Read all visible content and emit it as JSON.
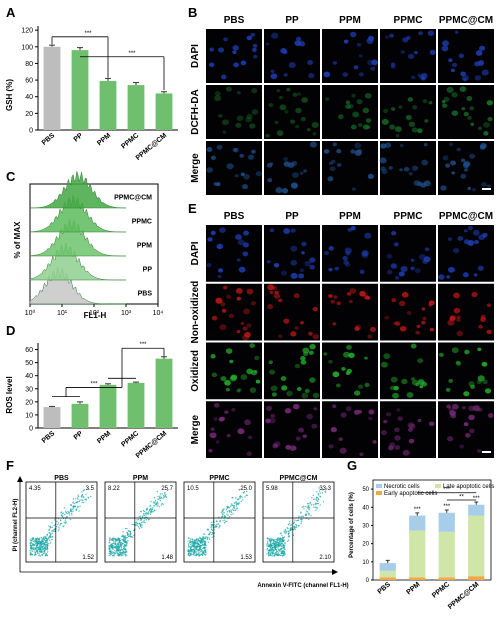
{
  "panels": {
    "A": "A",
    "B": "B",
    "C": "C",
    "D": "D",
    "E": "E",
    "F": "F",
    "G": "G"
  },
  "micro_columns": [
    "PBS",
    "PP",
    "PPM",
    "PPMC",
    "PPMC@CM"
  ],
  "microscopy_B": {
    "rows": [
      "DAPI",
      "DCFH-DA",
      "Merge"
    ],
    "colors": {
      "DAPI": "#1f3fb5",
      "DCFH-DA": "#1a7a2a",
      "Merge": "#1f4f8a"
    }
  },
  "microscopy_E": {
    "rows": [
      "DAPI",
      "Non-oxidized",
      "Oxidized",
      "Merge"
    ],
    "colors": {
      "DAPI": "#1f3fb5",
      "Non-oxidized": "#c01818",
      "Oxidized": "#24b22c",
      "Merge": "#7a2a7a"
    }
  },
  "chart_data": [
    {
      "panel": "A",
      "type": "bar",
      "categories": [
        "PBS",
        "PP",
        "PPM",
        "PPMC",
        "PPMC@CM"
      ],
      "values": [
        100,
        96,
        59,
        54,
        44
      ],
      "errors": [
        2,
        3,
        3,
        3,
        2
      ],
      "ylabel": "GSH (%)",
      "ylim": [
        0,
        125
      ],
      "yticks": [
        0,
        20,
        40,
        60,
        80,
        100,
        120
      ],
      "colors": [
        "#bdbdbd",
        "#6fbf6f",
        "#6fbf6f",
        "#6fbf6f",
        "#6fbf6f"
      ],
      "significance": [
        "***",
        "***"
      ]
    },
    {
      "panel": "C",
      "type": "area",
      "title": "",
      "xlabel": "FL1-H",
      "ylabel": "% of MAX",
      "xticks": [
        "10⁰",
        "10¹",
        "10²",
        "10³",
        "10⁴"
      ],
      "series": [
        {
          "name": "PBS",
          "peak_log": 0.9,
          "color": "#c7c7c7"
        },
        {
          "name": "PP",
          "peak_log": 1.1,
          "color": "#8fd08f"
        },
        {
          "name": "PPM",
          "peak_log": 1.3,
          "color": "#6cc46c"
        },
        {
          "name": "PPMC",
          "peak_log": 1.35,
          "color": "#5cbb5c"
        },
        {
          "name": "PPMC@CM",
          "peak_log": 1.5,
          "color": "#43a743"
        }
      ]
    },
    {
      "panel": "D",
      "type": "bar",
      "categories": [
        "PBS",
        "PP",
        "PPM",
        "PPMC",
        "PPMC@CM"
      ],
      "values": [
        16,
        18.5,
        33,
        34.5,
        53
      ],
      "errors": [
        0.5,
        1.5,
        0.8,
        0.6,
        1.5
      ],
      "ylabel": "ROS level",
      "ylim": [
        0,
        65
      ],
      "yticks": [
        0,
        10,
        20,
        30,
        40,
        50,
        60
      ],
      "colors": [
        "#bdbdbd",
        "#6fbf6f",
        "#6fbf6f",
        "#6fbf6f",
        "#6fbf6f"
      ],
      "significance": [
        "***",
        "***"
      ]
    },
    {
      "panel": "F",
      "type": "scatter",
      "xlabel": "Annexin V-FITC (channel FL1-H)",
      "ylabel": "PI (channel FL2-H)",
      "plots": [
        {
          "title": "PBS",
          "q": [
            "4.35",
            "3.5",
            "1.52"
          ]
        },
        {
          "title": "PPM",
          "q": [
            "8.22",
            "25.7",
            "1.48"
          ]
        },
        {
          "title": "PPMC",
          "q": [
            "10.5",
            "25.0",
            "1.53"
          ]
        },
        {
          "title": "PPMC@CM",
          "q": [
            "5.98",
            "33.3",
            "2.10"
          ]
        }
      ]
    },
    {
      "panel": "G",
      "type": "bar",
      "categories": [
        "PBS",
        "PPM",
        "PPMC",
        "PPMC@CM"
      ],
      "series": [
        {
          "name": "Early apoptotic cells",
          "values": [
            1.5,
            1.5,
            1.5,
            2.1
          ],
          "color": "#f0a94a"
        },
        {
          "name": "Late apoptotic cells",
          "values": [
            3.5,
            25.7,
            25.0,
            33.3
          ],
          "color": "#cfe6a8"
        },
        {
          "name": "Necrotic cells",
          "values": [
            4.3,
            8.2,
            10.5,
            6.0
          ],
          "color": "#a8cde8"
        }
      ],
      "ylabel": "Percentage of cells (%)",
      "ylim": [
        0,
        55
      ],
      "yticks": [
        0,
        10,
        20,
        30,
        40,
        50
      ],
      "significance": [
        "***",
        "***",
        "***",
        "***",
        "**"
      ]
    }
  ]
}
